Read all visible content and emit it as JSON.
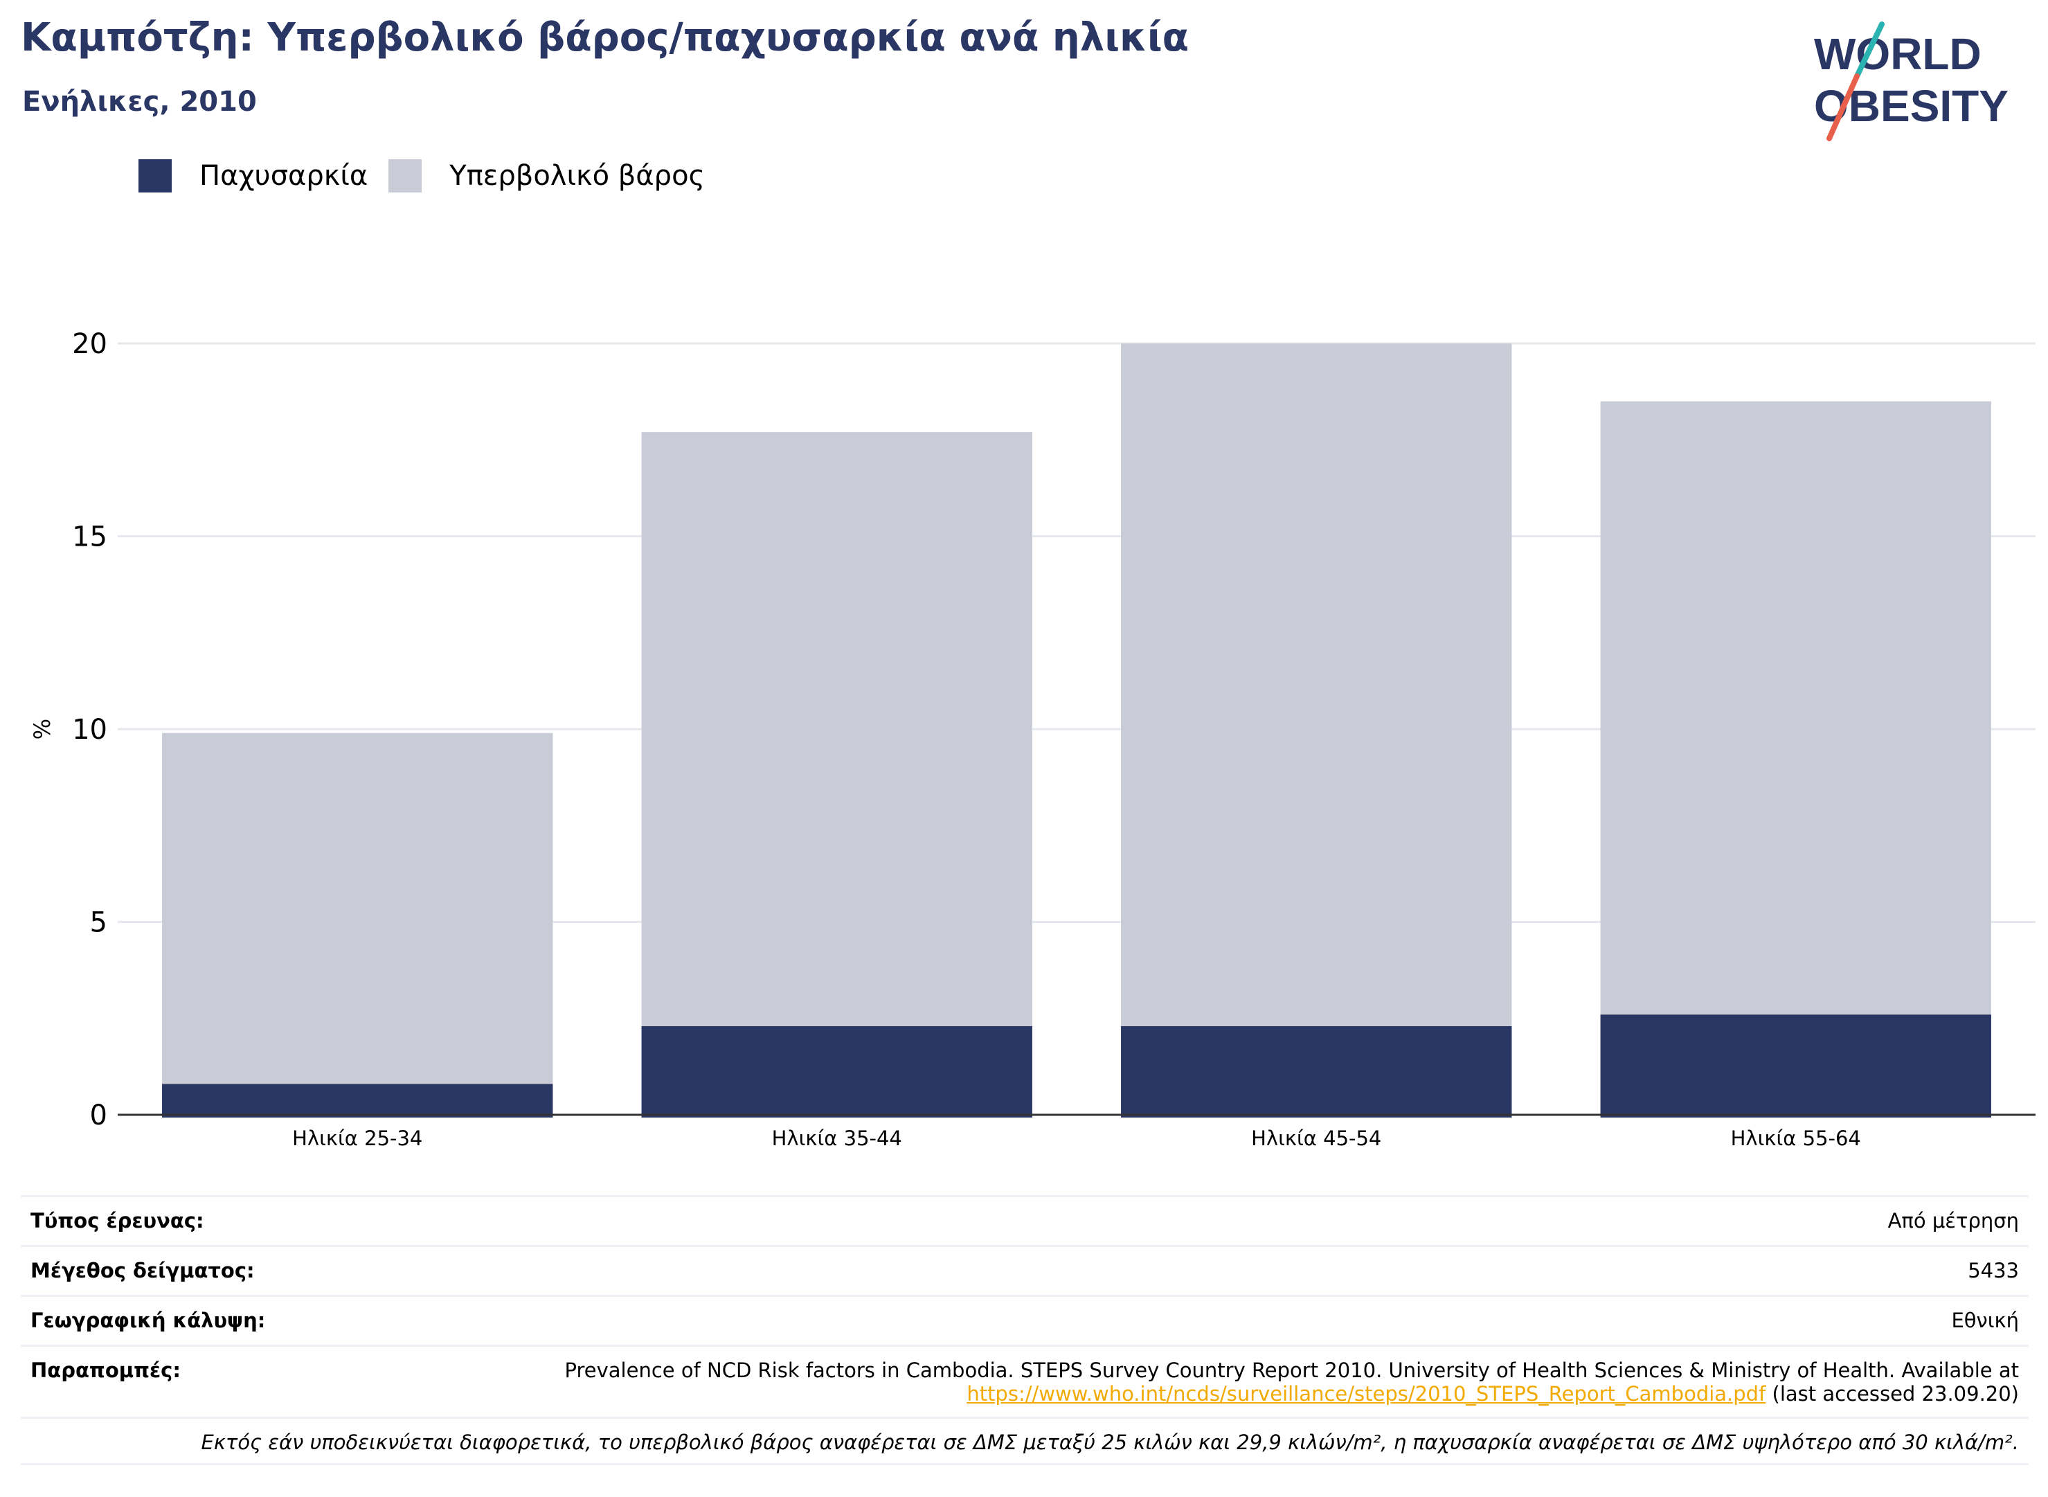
{
  "header": {
    "title": "Καμπότζη: Υπερβολικό βάρος/παχυσαρκία ανά ηλικία",
    "subtitle": "Ενήλικες, 2010"
  },
  "logo": {
    "line1": "WORLD",
    "line2": "OBESITY"
  },
  "legend": [
    {
      "label": "Παχυσαρκία",
      "color": "#2a3664"
    },
    {
      "label": "Υπερβολικό βάρος",
      "color": "#c9cbd7"
    }
  ],
  "chart_data": {
    "type": "bar",
    "stacked": true,
    "categories": [
      "Ηλικία 25-34",
      "Ηλικία 35-44",
      "Ηλικία 45-54",
      "Ηλικία 55-64"
    ],
    "series": [
      {
        "name": "Παχυσαρκία",
        "values": [
          0.8,
          2.3,
          2.3,
          2.6
        ],
        "color": "#2a3664"
      },
      {
        "name": "Υπερβολικό βάρος",
        "values": [
          9.1,
          15.4,
          17.7,
          15.9
        ],
        "color": "#c9cbd7"
      }
    ],
    "ylabel": "%",
    "ylim": [
      0,
      20
    ],
    "yticks": [
      0,
      5,
      10,
      15,
      20
    ],
    "grid": true,
    "legend_position": "top-left"
  },
  "info": {
    "survey_type": {
      "label": "Τύπος έρευνας:",
      "value": "Από μέτρηση"
    },
    "sample_size": {
      "label": "Μέγεθος δείγματος:",
      "value": "5433"
    },
    "coverage": {
      "label": "Γεωγραφική κάλυψη:",
      "value": "Εθνική"
    },
    "references": {
      "label": "Παραπομπές:",
      "text_before": "Prevalence of NCD Risk factors in Cambodia. STEPS Survey Country Report 2010. University of Health Sciences & Ministry of Health. Available at",
      "link": "https://www.who.int/ncds/surveillance/steps/2010_STEPS_Report_Cambodia.pdf",
      "text_after": "(last accessed 23.09.20)"
    },
    "note": "Εκτός εάν υποδεικνύεται διαφορετικά, το υπερβολικό βάρος αναφέρεται σε ΔΜΣ μεταξύ 25 κιλών και 29,9 κιλών/m², η παχυσαρκία αναφέρεται σε ΔΜΣ υψηλότερο από 30 κιλά/m²."
  }
}
